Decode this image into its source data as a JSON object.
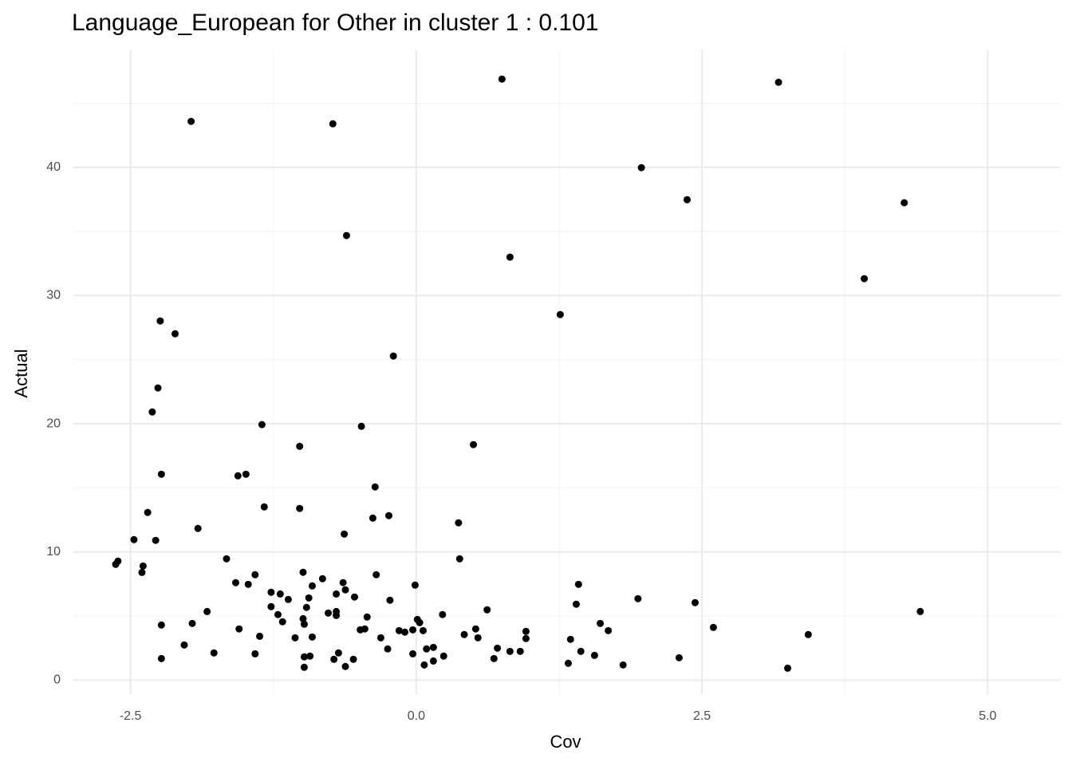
{
  "chart_data": {
    "type": "scatter",
    "title": "Language_European for Other in cluster 1 : 0.101",
    "x_label": "Cov",
    "y_label": "Actual",
    "color": "#000000",
    "grid": true,
    "minor_grid": true,
    "xlim": [
      -3.0,
      5.64
    ],
    "ylim": [
      -1.1,
      49.2
    ],
    "xticks": [
      -2.5,
      {
        "value": 0,
        "label": "0.0"
      },
      2.5,
      {
        "value": 5,
        "label": "5.0"
      }
    ],
    "yticks": [
      0,
      10,
      20,
      30,
      40
    ],
    "x": [
      -2.63,
      -2.61,
      -2.47,
      -2.39,
      -2.4,
      -2.35,
      -2.28,
      -2.31,
      -2.26,
      -2.24,
      -2.23,
      -2.23,
      -2.23,
      -2.11,
      -2.03,
      -1.97,
      -1.96,
      -1.91,
      -1.83,
      -1.77,
      -1.66,
      -1.58,
      -1.56,
      -1.55,
      -1.49,
      -1.47,
      -1.41,
      -1.41,
      -1.37,
      -1.35,
      -1.33,
      -1.27,
      -1.27,
      -1.21,
      -1.19,
      -1.17,
      -1.12,
      -1.06,
      -1.02,
      -1.02,
      -0.99,
      -0.99,
      -0.98,
      -0.98,
      -0.98,
      -0.96,
      -0.94,
      -0.93,
      -0.91,
      -0.91,
      -0.82,
      -0.77,
      -0.73,
      -0.72,
      -0.7,
      -0.7,
      -0.7,
      -0.68,
      -0.64,
      -0.63,
      -0.62,
      -0.62,
      -0.61,
      -0.55,
      -0.54,
      -0.49,
      -0.48,
      -0.45,
      -0.43,
      -0.38,
      -0.36,
      -0.35,
      -0.31,
      -0.25,
      -0.24,
      -0.23,
      -0.2,
      -0.15,
      -0.1,
      -0.03,
      -0.03,
      -0.01,
      0.01,
      0.03,
      0.06,
      0.07,
      0.09,
      0.15,
      0.15,
      0.23,
      0.24,
      0.37,
      0.38,
      0.42,
      0.5,
      0.52,
      0.54,
      0.62,
      0.68,
      0.71,
      0.75,
      0.82,
      0.82,
      0.91,
      0.96,
      0.96,
      1.26,
      1.33,
      1.35,
      1.4,
      1.42,
      1.44,
      1.56,
      1.61,
      1.68,
      1.81,
      1.94,
      1.97,
      2.3,
      2.37,
      2.44,
      2.6,
      3.17,
      3.25,
      3.43,
      3.92,
      4.27,
      4.41
    ],
    "values": [
      9.03,
      9.28,
      10.96,
      8.9,
      8.4,
      13.08,
      10.9,
      20.92,
      22.79,
      28.02,
      16.06,
      4.3,
      1.68,
      27.02,
      2.74,
      43.59,
      4.42,
      11.83,
      5.35,
      2.12,
      9.46,
      7.6,
      15.94,
      3.99,
      16.06,
      7.47,
      8.22,
      2.05,
      3.42,
      19.93,
      13.51,
      6.85,
      5.73,
      5.11,
      6.72,
      4.55,
      6.29,
      3.3,
      18.24,
      13.39,
      8.41,
      4.79,
      1.81,
      1.0,
      4.36,
      5.67,
      6.41,
      1.87,
      7.35,
      3.36,
      7.91,
      5.23,
      43.4,
      1.62,
      6.72,
      5.35,
      5.04,
      2.12,
      7.6,
      11.39,
      7.04,
      1.06,
      34.68,
      1.62,
      6.48,
      3.92,
      19.8,
      3.99,
      4.92,
      12.64,
      15.07,
      8.22,
      3.3,
      2.43,
      12.83,
      6.23,
      25.28,
      3.86,
      3.74,
      2.05,
      3.92,
      7.41,
      4.73,
      4.48,
      3.86,
      1.18,
      2.43,
      2.55,
      1.49,
      5.11,
      1.87,
      12.27,
      9.46,
      3.55,
      18.37,
      3.99,
      3.3,
      5.48,
      1.68,
      2.49,
      46.89,
      2.24,
      33.0,
      2.24,
      3.24,
      3.8,
      28.52,
      1.31,
      3.18,
      5.92,
      7.47,
      2.24,
      1.93,
      4.42,
      3.86,
      1.18,
      6.35,
      39.98,
      1.74,
      37.48,
      6.04,
      4.11,
      46.64,
      0.93,
      3.55,
      31.32,
      37.24,
      5.35
    ]
  }
}
